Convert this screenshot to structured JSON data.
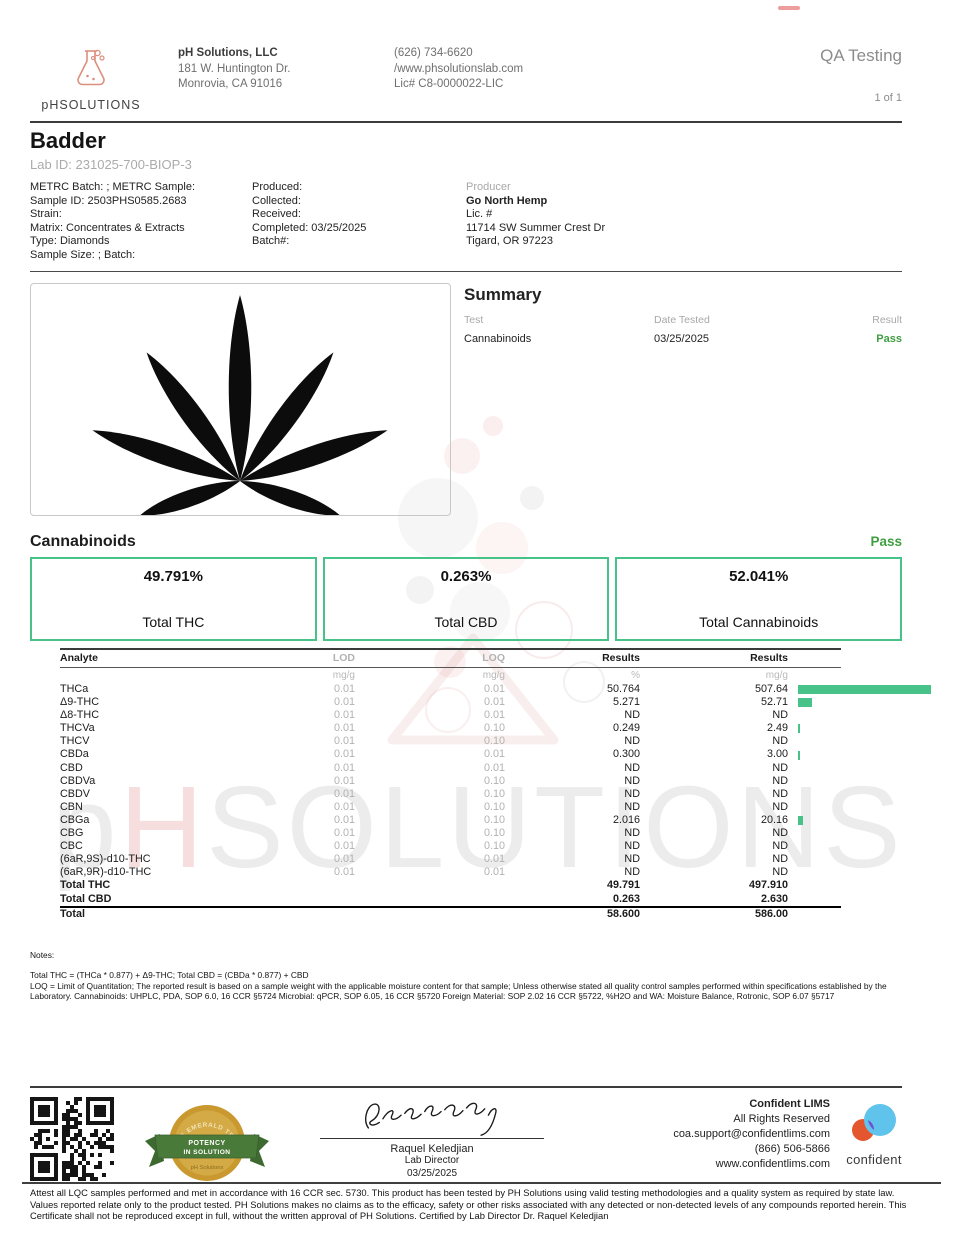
{
  "page": {
    "label": "QA Testing",
    "page_num": "1 of 1"
  },
  "lab": {
    "logo": {
      "p": "p",
      "h": "H",
      "rest": "SOLUTIONS"
    },
    "name": "pH Solutions, LLC",
    "address1": "181 W. Huntington Dr.",
    "address2": "Monrovia, CA 91016",
    "phone": "(626) 734-6620",
    "website": "/www.phsolutionslab.com",
    "license": "Lic# C8-0000022-LIC"
  },
  "product": {
    "name": "Badder",
    "lab_id": "Lab ID: 231025-700-BIOP-3",
    "col1": [
      "METRC Batch: ; METRC Sample:",
      "Sample ID: 2503PHS0585.2683",
      "Strain:",
      "Matrix: Concentrates & Extracts",
      "Type: Diamonds",
      "Sample Size: ; Batch:"
    ],
    "col2": [
      "Produced:",
      "Collected:",
      "Received:",
      "Completed: 03/25/2025",
      "Batch#:"
    ],
    "producer": {
      "label": "Producer",
      "name": "Go North Hemp",
      "lines": [
        "Lic. #",
        "11714 SW Summer Crest Dr",
        "Tigard, OR 97223"
      ]
    }
  },
  "summary": {
    "title": "Summary",
    "headers": [
      "Test",
      "Date Tested",
      "Result"
    ],
    "row": {
      "test": "Cannabinoids",
      "date": "03/25/2025",
      "result": "Pass"
    }
  },
  "cannabinoids": {
    "title": "Cannabinoids",
    "status": "Pass",
    "totals": [
      {
        "value": "49.791%",
        "label": "Total THC"
      },
      {
        "value": "0.263%",
        "label": "Total CBD"
      },
      {
        "value": "52.041%",
        "label": "Total Cannabinoids"
      }
    ],
    "table": {
      "headers": [
        "Analyte",
        "LOD",
        "LOQ",
        "Results",
        "Results"
      ],
      "units": [
        "",
        "mg/g",
        "mg/g",
        "%",
        "mg/g"
      ],
      "bar_max_mgg": 507.64,
      "rows": [
        {
          "analyte": "THCa",
          "lod": "0.01",
          "loq": "0.01",
          "pct": "50.764",
          "mgg": "507.64",
          "bar": 507.64
        },
        {
          "analyte": "Δ9-THC",
          "lod": "0.01",
          "loq": "0.01",
          "pct": "5.271",
          "mgg": "52.71",
          "bar": 52.71
        },
        {
          "analyte": "Δ8-THC",
          "lod": "0.01",
          "loq": "0.01",
          "pct": "ND",
          "mgg": "ND",
          "bar": 0
        },
        {
          "analyte": "THCVa",
          "lod": "0.01",
          "loq": "0.10",
          "pct": "0.249",
          "mgg": "2.49",
          "bar": 2.49
        },
        {
          "analyte": "THCV",
          "lod": "0.01",
          "loq": "0.10",
          "pct": "ND",
          "mgg": "ND",
          "bar": 0
        },
        {
          "analyte": "CBDa",
          "lod": "0.01",
          "loq": "0.01",
          "pct": "0.300",
          "mgg": "3.00",
          "bar": 3.0
        },
        {
          "analyte": "CBD",
          "lod": "0.01",
          "loq": "0.01",
          "pct": "ND",
          "mgg": "ND",
          "bar": 0
        },
        {
          "analyte": "CBDVa",
          "lod": "0.01",
          "loq": "0.10",
          "pct": "ND",
          "mgg": "ND",
          "bar": 0
        },
        {
          "analyte": "CBDV",
          "lod": "0.01",
          "loq": "0.10",
          "pct": "ND",
          "mgg": "ND",
          "bar": 0
        },
        {
          "analyte": "CBN",
          "lod": "0.01",
          "loq": "0.10",
          "pct": "ND",
          "mgg": "ND",
          "bar": 0
        },
        {
          "analyte": "CBGa",
          "lod": "0.01",
          "loq": "0.10",
          "pct": "2.016",
          "mgg": "20.16",
          "bar": 20.16
        },
        {
          "analyte": "CBG",
          "lod": "0.01",
          "loq": "0.10",
          "pct": "ND",
          "mgg": "ND",
          "bar": 0
        },
        {
          "analyte": "CBC",
          "lod": "0.01",
          "loq": "0.10",
          "pct": "ND",
          "mgg": "ND",
          "bar": 0
        },
        {
          "analyte": "(6aR,9S)-d10-THC",
          "lod": "0.01",
          "loq": "0.01",
          "pct": "ND",
          "mgg": "ND",
          "bar": 0
        },
        {
          "analyte": "(6aR,9R)-d10-THC",
          "lod": "0.01",
          "loq": "0.01",
          "pct": "ND",
          "mgg": "ND",
          "bar": 0
        }
      ],
      "total_rows": [
        {
          "analyte": "Total THC",
          "pct": "49.791",
          "mgg": "497.910"
        },
        {
          "analyte": "Total CBD",
          "pct": "0.263",
          "mgg": "2.630"
        }
      ],
      "grand_total": {
        "analyte": "Total",
        "pct": "58.600",
        "mgg": "586.00"
      }
    }
  },
  "notes": {
    "title": "Notes:",
    "line1": "Total THC = (THCa * 0.877) + Δ9-THC; Total CBD = (CBDa * 0.877) + CBD",
    "line2": "LOQ = Limit of Quantitation; The reported result is based on a sample weight with the applicable moisture content for that sample; Unless otherwise stated all quality control samples performed within specifications established by the Laboratory. Cannabinoids: UHPLC,  PDA, SOP 6.0, 16 CCR §5724 Microbial: qPCR, SOP 6.05, 16 CCR §5720  Foreign Material: SOP 2.02 16 CCR §5722, %H2O and WA: Moisture  Balance,  Rotronic, SOP 6.07 §5717"
  },
  "footer": {
    "badge": {
      "arc": "THE EMERALD TEST",
      "band1": "POTENCY",
      "band2": "IN SOLUTION",
      "sub": "pH Solutions"
    },
    "signature": {
      "name": "Raquel Keledjian",
      "title": "Lab Director",
      "date": "03/25/2025"
    },
    "confident": {
      "lines": [
        "Confident LIMS",
        "All Rights Reserved",
        "coa.support@confidentlims.com",
        "(866) 506-5866",
        "www.confidentlims.com"
      ],
      "logo_text": "confident"
    }
  },
  "attestation": "Attest all LQC samples performed and met in accordance with 16 CCR sec. 5730. This product has been tested by PH Solutions using valid testing methodologies and a quality system as required by state law. Values reported relate only to the product tested. PH Solutions makes no claims as to the efficacy, safety or other risks associated with any detected or non-detected levels of any compounds reported herein. This Certificate shall not be reproduced except in full, without the written approval of PH Solutions. Certified by Lab Director  Dr. Raquel Keledjian",
  "watermark": {
    "p": "p",
    "h": "H",
    "rest": "SOLUTIONS"
  },
  "colors": {
    "accent_green": "#47c38a",
    "pass_green": "#3f9e42",
    "gold": "#c9992f",
    "ribbon_green": "#4a7a3a",
    "logo_salmon": "#dd8f7f",
    "confident_blue": "#5fc3ec",
    "confident_orange": "#e4572e",
    "confident_purple": "#6f50d0"
  },
  "icons": {
    "flask-logo-icon": "erlenmeyer flask with bubbles",
    "cannabis-leaf-image": "black 7-leaflet cannabis leaf silhouette",
    "qr-code": "QR code",
    "emerald-test-badge": "gold medal with green POTENCY IN SOLUTION ribbon",
    "signature": "handwritten signature",
    "confident-logo-icon": "overlapping blue and orange circles"
  }
}
